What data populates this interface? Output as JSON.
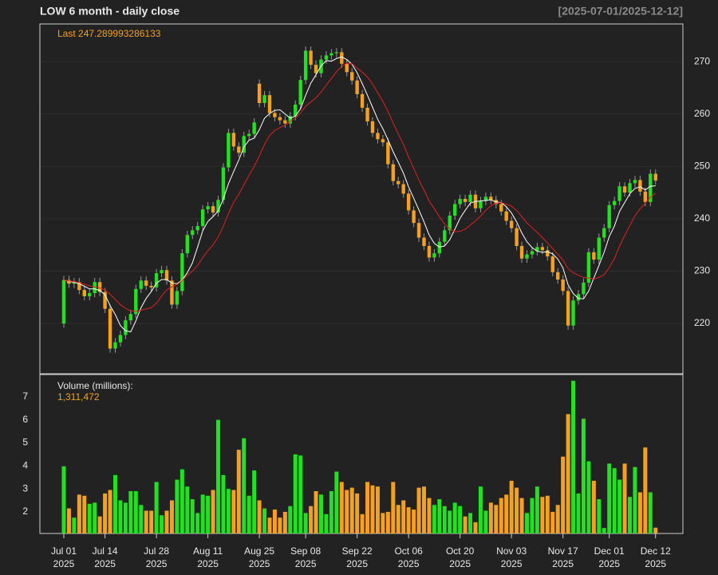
{
  "chart_data": [
    {
      "type": "candlestick",
      "title": "LOW  6 month - daily close",
      "subtitle": "[2025-07-01/2025-12-12]",
      "annotation": "Last 247.289993286133",
      "categories": [
        "Jul 01",
        null,
        null,
        null,
        null,
        null,
        null,
        null,
        "Jul 14",
        null,
        null,
        null,
        null,
        null,
        null,
        null,
        null,
        null,
        "Jul 28",
        null,
        null,
        null,
        null,
        null,
        null,
        null,
        null,
        null,
        "Aug 11",
        null,
        null,
        null,
        null,
        null,
        null,
        null,
        null,
        null,
        "Aug 25",
        null,
        null,
        null,
        null,
        null,
        null,
        null,
        null,
        "Sep 08",
        null,
        null,
        null,
        null,
        null,
        null,
        null,
        null,
        null,
        "Sep 22",
        null,
        null,
        null,
        null,
        null,
        null,
        null,
        null,
        null,
        "Oct 06",
        null,
        null,
        null,
        null,
        null,
        null,
        null,
        null,
        null,
        "Oct 20",
        null,
        null,
        null,
        null,
        null,
        null,
        null,
        null,
        null,
        "Nov 03",
        null,
        null,
        null,
        null,
        null,
        null,
        null,
        null,
        null,
        "Nov 17",
        null,
        null,
        null,
        null,
        null,
        null,
        null,
        null,
        "Dec 01",
        null,
        null,
        null,
        null,
        null,
        null,
        null,
        null,
        "Dec 12"
      ],
      "year": "2025",
      "open": [
        220.0,
        228.3,
        227.6,
        227.9,
        226.4,
        225.2,
        225.8,
        227.9,
        226.0,
        222.8,
        215.2,
        216.4,
        217.8,
        220.6,
        221.8,
        226.6,
        228.2,
        227.2,
        226.9,
        229.6,
        230.2,
        228.2,
        223.6,
        226.2,
        233.4,
        236.9,
        237.8,
        238.6,
        241.8,
        242.4,
        241.2,
        243.6,
        249.8,
        256.4,
        253.8,
        252.6,
        255.8,
        256.2,
        265.8,
        262.1,
        263.6,
        260.2,
        259.4,
        258.8,
        258.2,
        259.6,
        261.8,
        266.5,
        272.1,
        269.4,
        267.8,
        270.4,
        271.2,
        271.6,
        271.8,
        269.6,
        268.0,
        266.4,
        263.8,
        261.2,
        258.6,
        256.4,
        255.2,
        254.6,
        250.4,
        247.2,
        246.6,
        244.8,
        241.6,
        239.2,
        236.4,
        234.8,
        232.6,
        233.4,
        235.6,
        237.8,
        240.6,
        242.8,
        243.8,
        243.2,
        244.6,
        242.0,
        243.4,
        244.2,
        243.6,
        242.8,
        241.4,
        239.6,
        238.2,
        234.8,
        232.4,
        233.2,
        233.8,
        234.6,
        234.0,
        232.8,
        229.8,
        228.4,
        226.2,
        219.6,
        224.4,
        225.6,
        227.8,
        233.6,
        232.2,
        236.4,
        238.2,
        242.6,
        243.4,
        246.2,
        245.0,
        246.8,
        247.4,
        245.2,
        243.2,
        248.6
      ],
      "high": [
        229.1,
        229.1,
        228.7,
        228.7,
        227.2,
        226.6,
        228.7,
        228.7,
        226.8,
        223.6,
        217.2,
        218.6,
        221.4,
        222.6,
        227.4,
        229.0,
        229.0,
        228.0,
        230.4,
        231.0,
        231.0,
        229.0,
        227.0,
        234.2,
        237.7,
        238.6,
        239.4,
        242.6,
        243.2,
        243.2,
        244.4,
        250.6,
        257.2,
        257.2,
        254.6,
        256.6,
        257.0,
        259.2,
        266.6,
        264.4,
        264.4,
        261.0,
        260.2,
        259.6,
        260.4,
        262.6,
        267.3,
        272.9,
        272.9,
        270.2,
        271.2,
        272.0,
        272.4,
        272.6,
        272.6,
        270.4,
        268.8,
        267.2,
        264.6,
        262.0,
        259.4,
        257.2,
        256.0,
        255.4,
        251.2,
        248.0,
        247.4,
        245.6,
        242.4,
        240.0,
        237.2,
        235.6,
        234.2,
        236.4,
        238.6,
        241.4,
        243.6,
        244.6,
        244.6,
        245.4,
        245.4,
        244.2,
        245.0,
        245.0,
        244.4,
        243.6,
        242.2,
        240.4,
        239.0,
        235.6,
        234.0,
        234.6,
        235.4,
        235.4,
        234.8,
        233.6,
        230.6,
        229.2,
        227.0,
        225.2,
        226.4,
        228.6,
        234.4,
        234.4,
        237.2,
        239.0,
        243.4,
        244.2,
        247.0,
        247.0,
        247.6,
        248.2,
        248.2,
        246.0,
        249.4,
        249.4
      ],
      "low": [
        219.2,
        226.8,
        226.8,
        225.6,
        224.4,
        224.4,
        225.0,
        225.2,
        222.0,
        214.4,
        214.4,
        215.6,
        217.0,
        219.8,
        221.0,
        225.8,
        226.4,
        226.1,
        226.1,
        228.8,
        227.4,
        222.8,
        222.8,
        225.4,
        232.6,
        236.1,
        237.0,
        237.8,
        241.0,
        240.4,
        240.4,
        242.8,
        249.0,
        253.0,
        251.8,
        251.8,
        255.0,
        255.4,
        261.3,
        261.3,
        259.4,
        258.6,
        258.0,
        257.4,
        257.4,
        258.8,
        261.0,
        265.7,
        268.6,
        267.0,
        267.0,
        269.6,
        270.4,
        270.8,
        268.8,
        267.2,
        265.6,
        263.0,
        260.4,
        257.8,
        255.6,
        254.4,
        253.8,
        249.6,
        246.4,
        245.8,
        244.0,
        240.8,
        238.4,
        235.6,
        234.0,
        231.8,
        231.8,
        232.6,
        234.8,
        237.0,
        239.8,
        242.0,
        242.4,
        242.4,
        241.2,
        241.2,
        242.6,
        242.8,
        242.0,
        240.6,
        238.8,
        237.4,
        234.0,
        231.6,
        231.6,
        232.4,
        233.0,
        233.2,
        232.0,
        229.0,
        227.6,
        225.4,
        218.8,
        218.8,
        223.6,
        224.8,
        227.0,
        231.4,
        231.4,
        235.6,
        237.4,
        241.8,
        242.6,
        244.2,
        244.2,
        246.0,
        244.4,
        242.4,
        242.4,
        246.49
      ],
      "close": [
        228.3,
        227.6,
        227.9,
        226.4,
        225.2,
        225.8,
        227.9,
        226.0,
        222.8,
        215.2,
        216.4,
        217.8,
        220.6,
        221.8,
        226.6,
        228.2,
        227.2,
        226.9,
        229.6,
        230.2,
        228.2,
        223.6,
        226.2,
        233.4,
        236.9,
        237.8,
        238.6,
        241.8,
        242.4,
        241.2,
        243.6,
        249.8,
        256.4,
        253.8,
        252.6,
        255.8,
        256.2,
        258.4,
        262.1,
        263.6,
        260.2,
        259.4,
        258.8,
        258.2,
        259.6,
        261.8,
        266.5,
        272.1,
        269.4,
        267.8,
        270.4,
        271.2,
        271.6,
        271.8,
        269.6,
        268.0,
        266.4,
        263.8,
        261.2,
        258.6,
        256.4,
        255.2,
        254.6,
        250.4,
        247.2,
        246.6,
        244.8,
        241.6,
        239.2,
        236.4,
        234.8,
        232.6,
        233.4,
        235.6,
        237.8,
        240.6,
        242.8,
        243.8,
        243.2,
        244.6,
        242.0,
        243.4,
        244.2,
        243.6,
        242.8,
        241.4,
        239.6,
        238.2,
        234.8,
        232.4,
        233.2,
        233.8,
        234.6,
        234.0,
        232.8,
        229.8,
        228.4,
        226.2,
        219.6,
        224.4,
        225.6,
        227.8,
        233.6,
        232.2,
        236.4,
        238.2,
        242.6,
        243.4,
        246.2,
        245.0,
        246.8,
        247.4,
        245.2,
        243.2,
        248.6,
        247.29
      ],
      "up_color": "#22e022",
      "down_color": "#f5a020",
      "series": [
        {
          "color": "#ffffff",
          "values": [
            228.3,
            228.0,
            227.9,
            227.6,
            227.1,
            226.6,
            226.6,
            226.3,
            225.5,
            223.4,
            221.7,
            219.6,
            218.6,
            218.4,
            220.5,
            223.0,
            224.8,
            226.1,
            227.7,
            228.4,
            228.4,
            227.7,
            227.6,
            228.3,
            229.7,
            231.6,
            234.6,
            237.7,
            239.5,
            240.4,
            241.5,
            243.8,
            246.7,
            249.0,
            251.2,
            253.7,
            255.0,
            255.4,
            257.0,
            259.2,
            260.1,
            260.7,
            260.8,
            260.0,
            259.2,
            259.6,
            261.0,
            263.6,
            265.9,
            267.5,
            269.2,
            270.2,
            270.1,
            270.6,
            270.9,
            270.4,
            269.5,
            267.9,
            265.8,
            263.6,
            261.3,
            259.0,
            257.2,
            255.1,
            252.8,
            250.8,
            248.7,
            246.1,
            243.9,
            241.7,
            239.4,
            236.9,
            235.3,
            234.6,
            234.8,
            236.0,
            238.0,
            240.1,
            241.6,
            243.0,
            243.3,
            243.4,
            243.5,
            243.6,
            243.2,
            243.1,
            242.3,
            241.1,
            239.4,
            237.3,
            235.6,
            234.5,
            233.8,
            233.6,
            233.7,
            233.3,
            232.3,
            230.6,
            227.4,
            225.7,
            224.8,
            224.7,
            226.2,
            228.7,
            231.1,
            233.6,
            236.6,
            238.6,
            241.4,
            243.1,
            244.8,
            245.8,
            246.1,
            245.5,
            246.2,
            246.3
          ]
        },
        {
          "color": "#e02020",
          "values": [
            228.3,
            228.1,
            228.0,
            227.8,
            227.5,
            227.2,
            227.0,
            226.8,
            226.4,
            225.6,
            224.6,
            223.6,
            222.9,
            222.4,
            222.3,
            222.5,
            222.8,
            223.0,
            223.9,
            225.2,
            226.4,
            227.0,
            227.4,
            228.2,
            229.2,
            230.0,
            231.1,
            232.6,
            233.9,
            235.0,
            236.5,
            238.6,
            241.0,
            243.1,
            244.7,
            246.5,
            248.3,
            250.0,
            252.0,
            254.2,
            255.9,
            256.9,
            257.4,
            257.9,
            258.6,
            259.2,
            260.2,
            261.5,
            262.3,
            263.1,
            264.2,
            265.5,
            266.8,
            268.1,
            269.1,
            269.7,
            269.6,
            268.8,
            268.0,
            267.1,
            265.7,
            264.1,
            262.4,
            260.5,
            258.3,
            256.2,
            254.2,
            251.8,
            249.6,
            247.4,
            245.5,
            243.4,
            241.9,
            240.4,
            239.0,
            238.1,
            237.5,
            237.6,
            238.0,
            238.8,
            239.6,
            240.5,
            241.6,
            242.5,
            243.0,
            243.1,
            242.8,
            242.4,
            241.6,
            240.4,
            239.2,
            238.3,
            237.4,
            236.4,
            235.4,
            234.3,
            233.2,
            232.1,
            230.5,
            229.7,
            229.2,
            228.8,
            228.7,
            228.5,
            228.8,
            229.3,
            230.7,
            232.4,
            234.8,
            236.8,
            238.7,
            240.6,
            241.9,
            243.0,
            244.1,
            244.9
          ]
        }
      ],
      "ylim": [
        210.4,
        277.2
      ],
      "yticks": [
        220,
        230,
        240,
        250,
        260,
        270
      ],
      "grid": true
    },
    {
      "type": "bar",
      "ylabel": "Volume (millions):",
      "annotation": "1,311,472",
      "values": [
        3.98,
        2.15,
        1.75,
        2.75,
        2.7,
        2.35,
        2.4,
        1.8,
        2.8,
        2.95,
        3.6,
        2.5,
        2.4,
        2.9,
        2.9,
        2.3,
        2.05,
        2.05,
        3.3,
        1.85,
        2.05,
        2.5,
        3.4,
        3.85,
        3.1,
        2.55,
        1.95,
        2.75,
        2.7,
        2.95,
        6.0,
        3.6,
        3.0,
        2.95,
        4.7,
        5.2,
        2.7,
        3.8,
        2.5,
        2.15,
        1.75,
        2.1,
        1.75,
        2.0,
        2.25,
        4.5,
        4.45,
        1.95,
        2.25,
        2.9,
        2.75,
        1.9,
        2.9,
        3.75,
        3.3,
        2.95,
        3.05,
        2.8,
        1.9,
        3.3,
        3.15,
        3.1,
        1.95,
        2.0,
        3.3,
        2.3,
        2.5,
        2.2,
        2.1,
        3.05,
        3.1,
        2.6,
        2.3,
        2.55,
        2.25,
        2.05,
        2.4,
        2.25,
        1.8,
        1.95,
        1.55,
        3.1,
        2.05,
        2.4,
        2.3,
        2.6,
        2.75,
        3.35,
        3.05,
        2.6,
        1.95,
        2.6,
        3.1,
        2.65,
        2.7,
        2.0,
        2.3,
        4.4,
        6.25,
        7.7,
        2.8,
        6.05,
        4.2,
        3.35,
        2.55,
        1.3,
        4.1,
        3.9,
        3.4,
        4.1,
        2.65,
        3.95,
        2.85,
        4.8,
        2.85,
        1.311472
      ],
      "ylim": [
        1.06,
        7.97
      ],
      "yticks": [
        2,
        3,
        4,
        5,
        6,
        7
      ]
    }
  ]
}
